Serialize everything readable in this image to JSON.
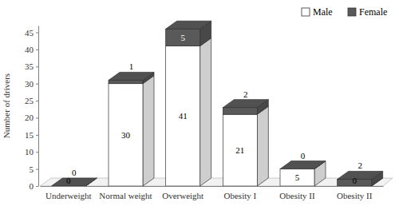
{
  "chart_data": {
    "type": "bar",
    "stacked": true,
    "data_labels": true,
    "legend": "top-right",
    "y_label": "Number of drivers",
    "categories": [
      "Underweight",
      "Normal weight",
      "Overweight",
      "Obesity I",
      "Obesity II",
      "Obesity II"
    ],
    "series": [
      {
        "name": "Male",
        "color": "#ffffff",
        "values": [
          0,
          30,
          41,
          21,
          5,
          0
        ]
      },
      {
        "name": "Female",
        "color": "#595959",
        "values": [
          0,
          1,
          5,
          2,
          0,
          2
        ]
      }
    ],
    "ylim": [
      0,
      47
    ],
    "yticks": [
      0,
      5,
      10,
      15,
      20,
      25,
      30,
      35,
      40,
      45
    ]
  }
}
